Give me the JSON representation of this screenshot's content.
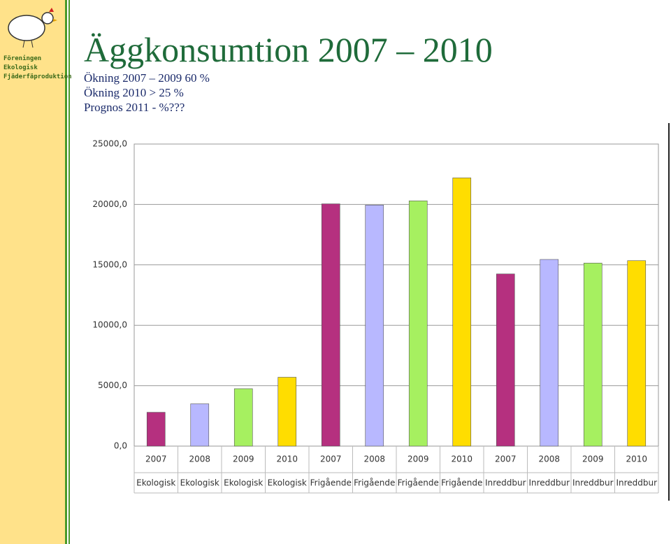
{
  "logo": {
    "lines": [
      "Föreningen",
      "Ekologisk",
      "Fjäderfäproduktion"
    ]
  },
  "chart_data": {
    "type": "bar",
    "title": "Äggkonsumtion 2007 – 2010",
    "subtitle": [
      "Ökning 2007 – 2009 60 %",
      "Ökning 2010 > 25 %",
      "Prognos 2011 - %???"
    ],
    "categories": [
      "2007",
      "2008",
      "2009",
      "2010",
      "2007",
      "2008",
      "2009",
      "2010",
      "2007",
      "2008",
      "2009",
      "2010"
    ],
    "groups": [
      "Ekologisk",
      "Ekologisk",
      "Ekologisk",
      "Ekologisk",
      "Frigående",
      "Frigående",
      "Frigående",
      "Frigående",
      "Inreddbur",
      "Inreddbur",
      "Inreddbur",
      "Inreddbur"
    ],
    "values": [
      2800,
      3500,
      4750,
      5700,
      20050,
      19950,
      20300,
      22200,
      14250,
      15450,
      15150,
      15350
    ],
    "colors": [
      "#b5307f",
      "#b8b8ff",
      "#a6f060",
      "#ffdd00",
      "#b5307f",
      "#b8b8ff",
      "#a6f060",
      "#ffdd00",
      "#b5307f",
      "#b8b8ff",
      "#a6f060",
      "#ffdd00"
    ],
    "ylim": [
      0,
      25000
    ],
    "yticks": [
      {
        "value": 0,
        "label": "0,0"
      },
      {
        "value": 5000,
        "label": "5000,0"
      },
      {
        "value": 10000,
        "label": "10000,0"
      },
      {
        "value": 15000,
        "label": "15000,0"
      },
      {
        "value": 20000,
        "label": "20000,0"
      },
      {
        "value": 25000,
        "label": "25000,0"
      }
    ],
    "grid": true
  }
}
